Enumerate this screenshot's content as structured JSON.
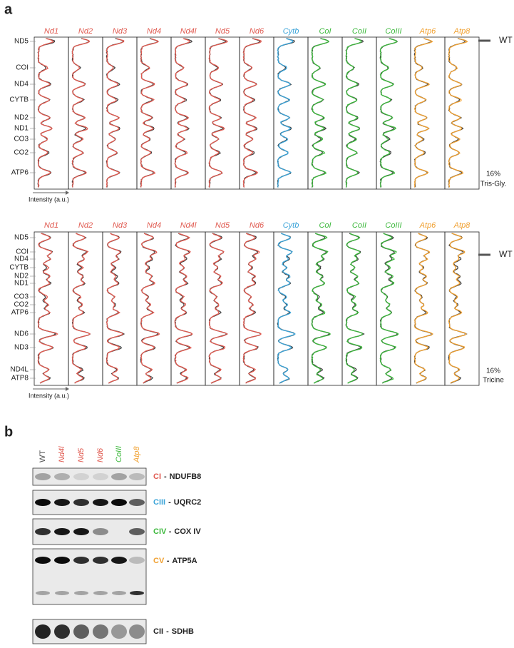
{
  "panel_a": {
    "label": "a",
    "genes": [
      {
        "name": "Nd1",
        "color": "#e05a50"
      },
      {
        "name": "Nd2",
        "color": "#e05a50"
      },
      {
        "name": "Nd3",
        "color": "#e05a50"
      },
      {
        "name": "Nd4",
        "color": "#e05a50"
      },
      {
        "name": "Nd4l",
        "color": "#e05a50"
      },
      {
        "name": "Nd5",
        "color": "#e05a50"
      },
      {
        "name": "Nd6",
        "color": "#e05a50"
      },
      {
        "name": "Cytb",
        "color": "#3aa3d8"
      },
      {
        "name": "CoI",
        "color": "#3cb83c"
      },
      {
        "name": "CoII",
        "color": "#3cb83c"
      },
      {
        "name": "CoIII",
        "color": "#3cb83c"
      },
      {
        "name": "Atp6",
        "color": "#f0a030"
      },
      {
        "name": "Atp8",
        "color": "#f0a030"
      }
    ],
    "wt_legend": "WT",
    "x_axis_label": "Intensity (a.u.)",
    "gels": [
      {
        "bands": [
          "ND5",
          "COI",
          "ND4",
          "CYTB",
          "ND2",
          "ND1",
          "CO3",
          "CO2",
          "ATP6"
        ],
        "condition": [
          "16%",
          "Tris-Gly."
        ]
      },
      {
        "bands": [
          "ND5",
          "COI",
          "ND4",
          "CYTB",
          "ND2",
          "ND1",
          "CO3",
          "CO2",
          "ATP6",
          "ND6",
          "ND3",
          "ND4L",
          "ATP8"
        ],
        "condition": [
          "16%",
          "Tricine"
        ]
      }
    ]
  },
  "panel_b": {
    "label": "b",
    "lanes": [
      {
        "name": "WT",
        "color": "#555555"
      },
      {
        "name": "Nd4l",
        "color": "#e05a50"
      },
      {
        "name": "Nd5",
        "color": "#e05a50"
      },
      {
        "name": "Nd6",
        "color": "#e05a50"
      },
      {
        "name": "CoIII",
        "color": "#3cb83c"
      },
      {
        "name": "Atp8",
        "color": "#f0a030"
      }
    ],
    "separator": "-",
    "blots": [
      {
        "complex": "CI",
        "complex_color": "#e05a50",
        "protein": "NDUFB8"
      },
      {
        "complex": "CIII",
        "complex_color": "#3aa3d8",
        "protein": "UQRC2"
      },
      {
        "complex": "CIV",
        "complex_color": "#3cb83c",
        "protein": "COX IV"
      },
      {
        "complex": "CV",
        "complex_color": "#f0a030",
        "protein": "ATP5A"
      },
      {
        "complex": "CII",
        "complex_color": "#222222",
        "protein": "SDHB"
      }
    ]
  }
}
